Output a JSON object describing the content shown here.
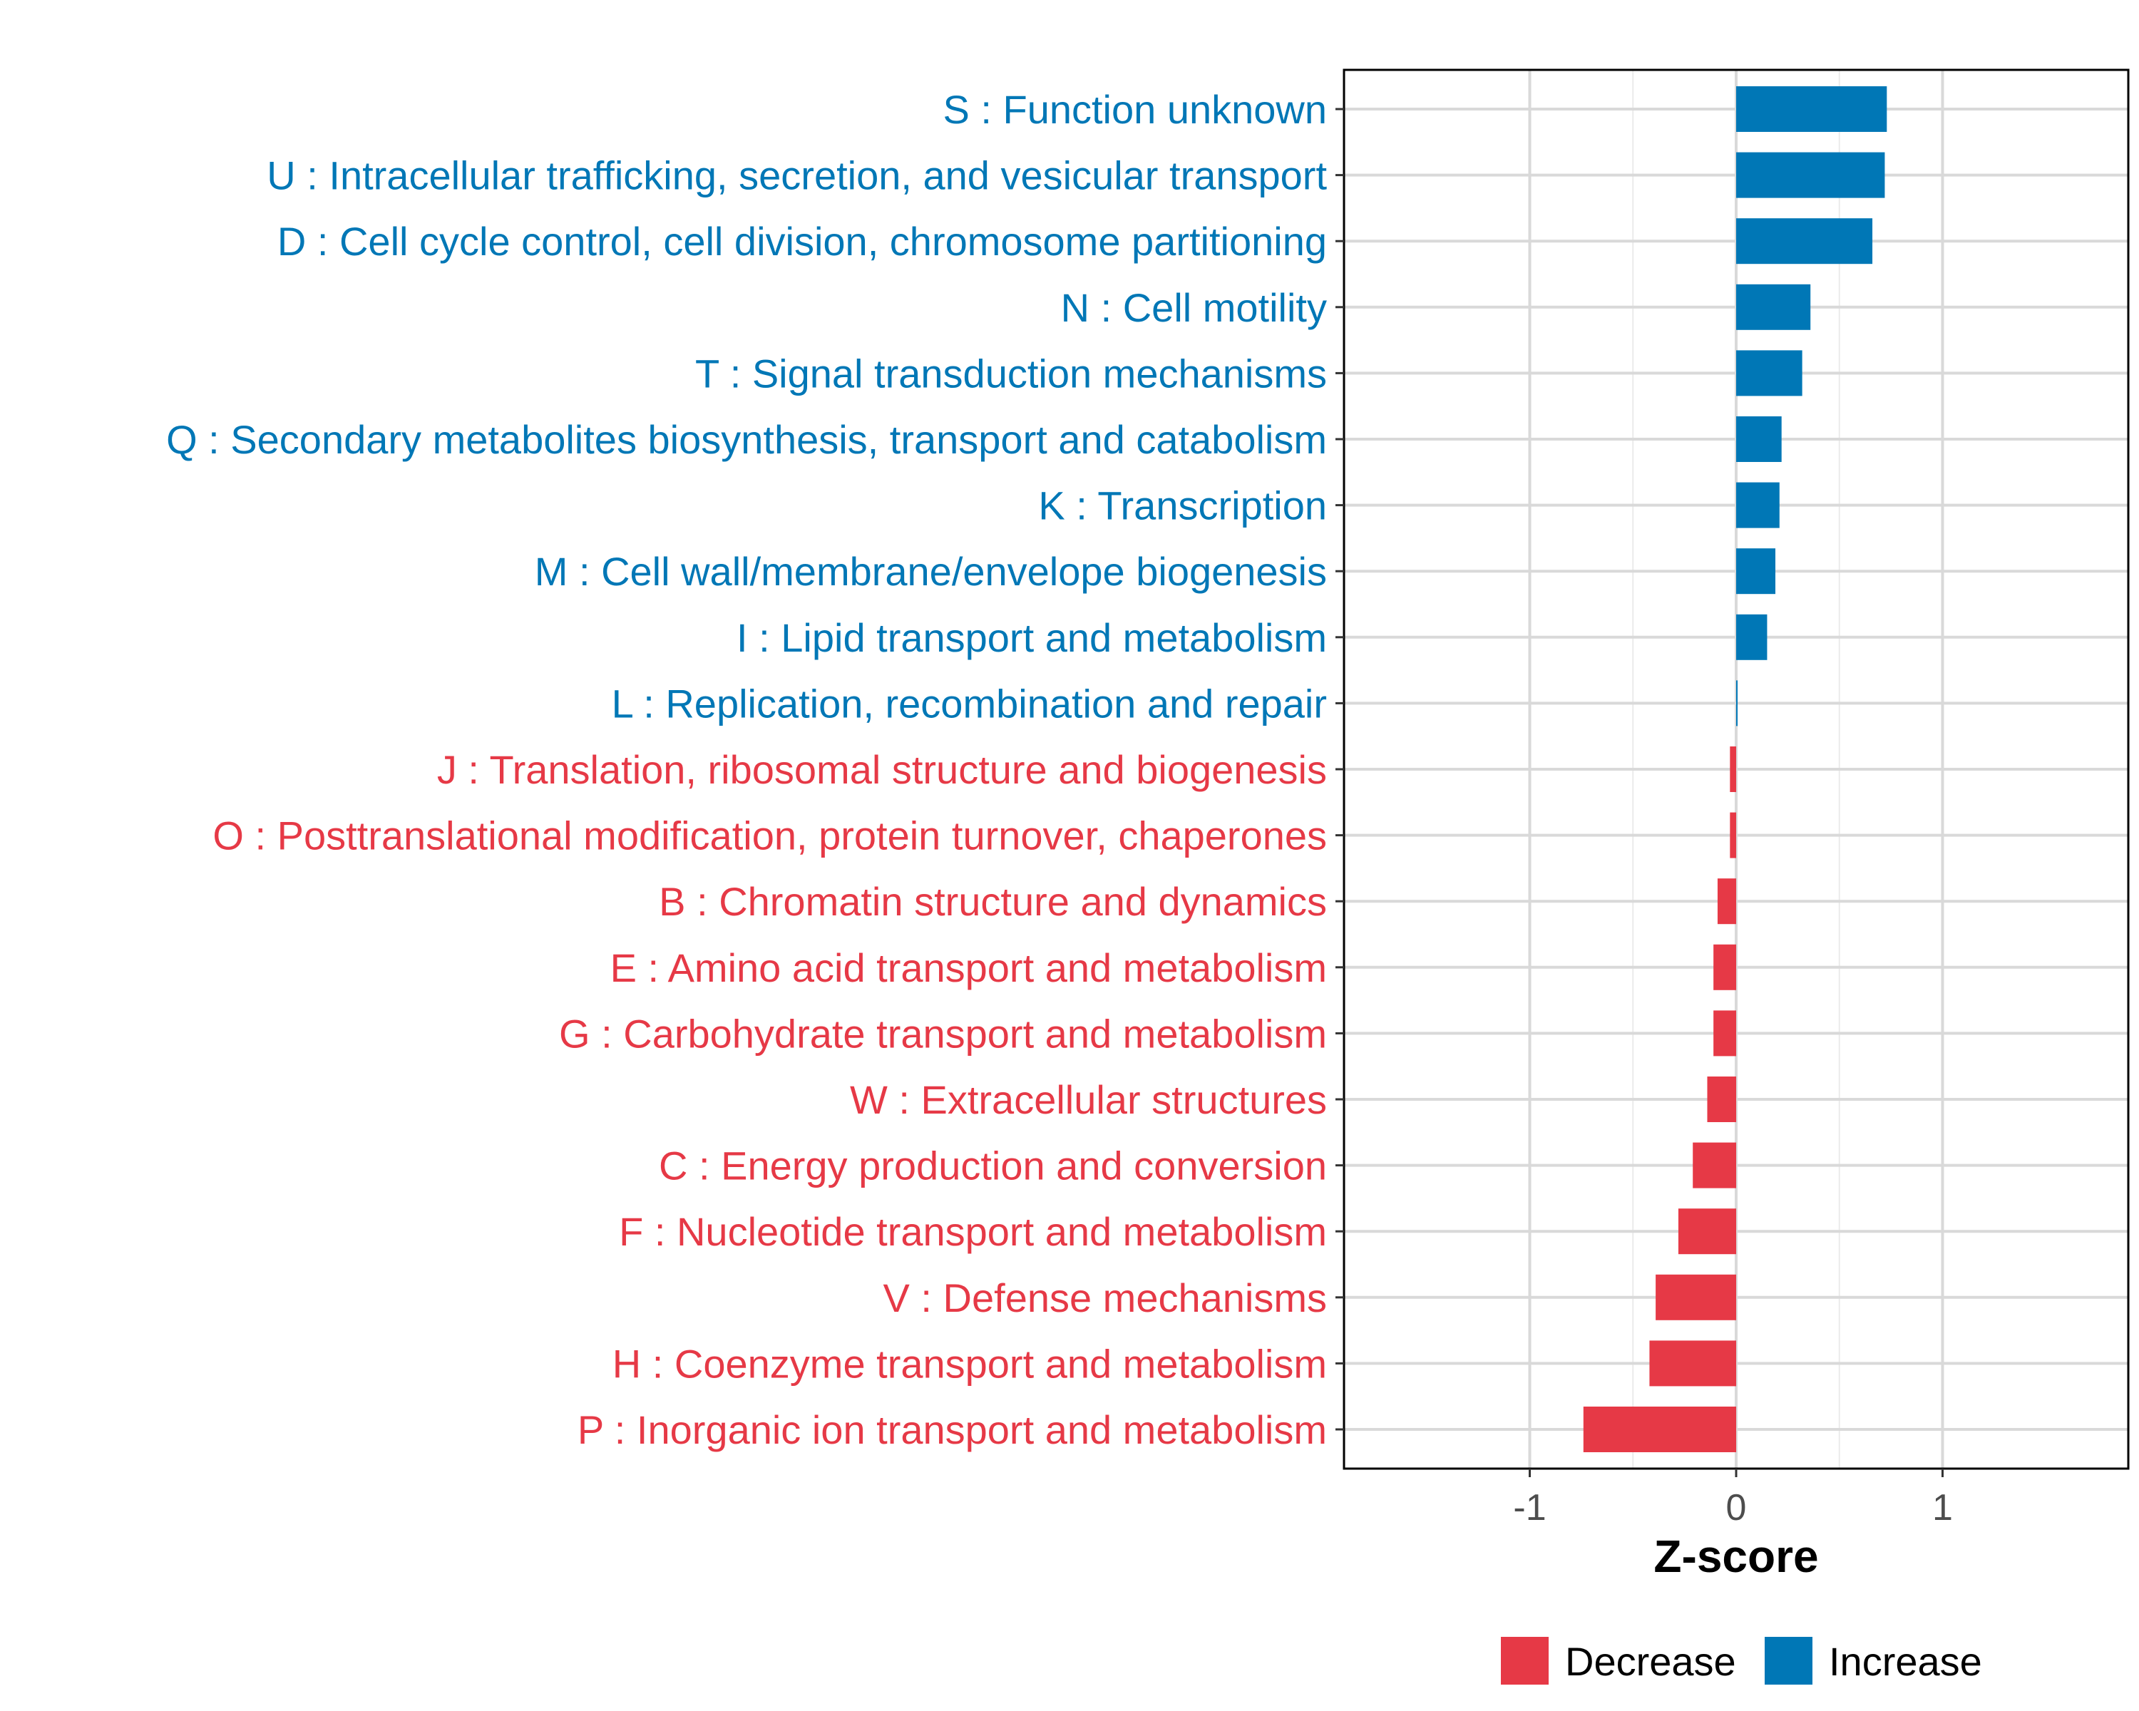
{
  "chart_data": {
    "type": "bar",
    "orientation": "horizontal",
    "xlabel": "Z-score",
    "xlim": [
      -1.9,
      1.9
    ],
    "xticks": [
      -1,
      0,
      1
    ],
    "xtick_labels": [
      "-1",
      "0",
      "1"
    ],
    "grid": true,
    "legend_position": "bottom",
    "legend": [
      {
        "name": "Decrease",
        "color": "#e63946"
      },
      {
        "name": "Increase",
        "color": "#0077b6"
      }
    ],
    "categories": [
      "S : Function unknown",
      "U : Intracellular trafficking, secretion, and vesicular transport",
      "D : Cell cycle control, cell division, chromosome partitioning",
      "N : Cell motility",
      "T : Signal transduction mechanisms",
      "Q : Secondary metabolites biosynthesis, transport and catabolism",
      "K : Transcription",
      "M : Cell wall/membrane/envelope biogenesis",
      "I : Lipid transport and metabolism",
      "L : Replication, recombination and repair",
      "J : Translation, ribosomal structure and biogenesis",
      "O : Posttranslational modification, protein turnover, chaperones",
      "B : Chromatin structure and dynamics",
      "E : Amino acid transport and metabolism",
      "G : Carbohydrate transport and metabolism",
      "W : Extracellular structures",
      "C : Energy production and conversion",
      "F : Nucleotide transport and metabolism",
      "V : Defense mechanisms",
      "H : Coenzyme transport and metabolism",
      "P : Inorganic ion transport and metabolism"
    ],
    "values": [
      0.73,
      0.72,
      0.66,
      0.36,
      0.32,
      0.22,
      0.21,
      0.19,
      0.15,
      0.005,
      -0.03,
      -0.03,
      -0.09,
      -0.11,
      -0.11,
      -0.14,
      -0.21,
      -0.28,
      -0.39,
      -0.42,
      -0.74
    ],
    "groups": [
      "Increase",
      "Increase",
      "Increase",
      "Increase",
      "Increase",
      "Increase",
      "Increase",
      "Increase",
      "Increase",
      "Increase",
      "Decrease",
      "Decrease",
      "Decrease",
      "Decrease",
      "Decrease",
      "Decrease",
      "Decrease",
      "Decrease",
      "Decrease",
      "Decrease",
      "Decrease"
    ]
  }
}
